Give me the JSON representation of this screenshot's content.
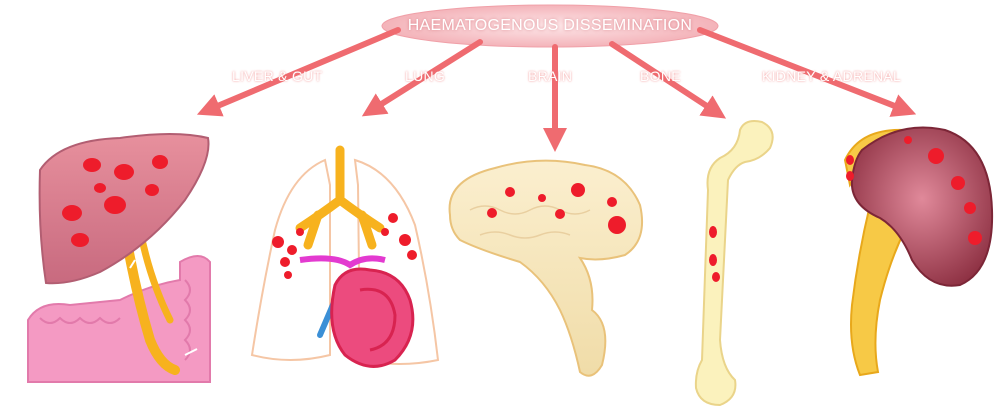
{
  "diagram": {
    "title": "HAEMATOGENOUS DISSEMINATION",
    "colors": {
      "arrow": "#ef6b70",
      "pill": "#f9c9cd",
      "lesion": "#ee1c2b",
      "liver": "#d9788a",
      "lung_outline": "#f5c6a5",
      "airway": "#f7b21e",
      "heart": "#ec4b7e",
      "brain": "#f5e6bd",
      "bone": "#fbf2bd",
      "kidney": "#b5546b"
    },
    "targets": [
      {
        "id": "liver",
        "label": "LIVER & GUT"
      },
      {
        "id": "lung",
        "label": "LUNG"
      },
      {
        "id": "brain",
        "label": "BRAIN"
      },
      {
        "id": "bone",
        "label": "BONE"
      },
      {
        "id": "kidney",
        "label": "KIDNEY & ADRENAL"
      }
    ]
  }
}
